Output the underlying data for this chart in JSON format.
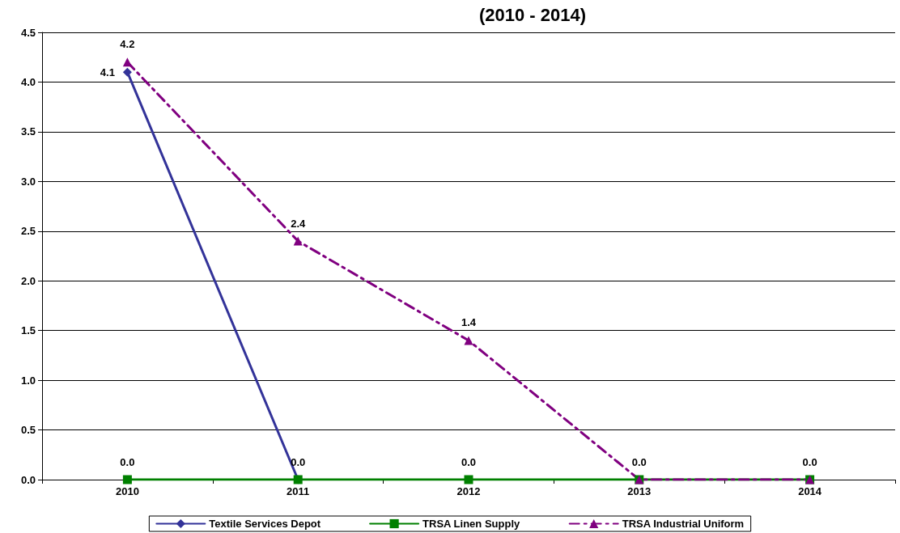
{
  "chart_data": {
    "type": "line",
    "title": "(2010 - 2014)",
    "categories": [
      "2010",
      "2011",
      "2012",
      "2013",
      "2014"
    ],
    "ylim": [
      0,
      4.5
    ],
    "yticks": [
      {
        "value": 0,
        "label": "0.0"
      },
      {
        "value": 0.5,
        "label": "0.5"
      },
      {
        "value": 1,
        "label": "1.0"
      },
      {
        "value": 1.5,
        "label": "1.5"
      },
      {
        "value": 2,
        "label": "2.0"
      },
      {
        "value": 2.5,
        "label": "2.5"
      },
      {
        "value": 3,
        "label": "3.0"
      },
      {
        "value": 3.5,
        "label": "3.5"
      },
      {
        "value": 4,
        "label": "4.0"
      },
      {
        "value": 4.5,
        "label": "4.5"
      }
    ],
    "grid": "y",
    "legend": "bottom",
    "series": [
      {
        "name": "Textile Services Depot",
        "color": "#333399",
        "marker": "diamond",
        "line_style": "solid",
        "values": [
          4.1,
          0,
          null,
          null,
          null
        ],
        "value_labels": [
          "4.1",
          null,
          null,
          null,
          null
        ]
      },
      {
        "name": "TRSA Linen Supply",
        "color": "#008000",
        "marker": "square",
        "line_style": "solid",
        "values": [
          0,
          0,
          0,
          0,
          0
        ],
        "value_labels": [
          "0.0",
          "0.0",
          "0.0",
          "0.0",
          "0.0"
        ]
      },
      {
        "name": "TRSA Industrial Uniform",
        "color": "#800080",
        "marker": "triangle",
        "line_style": "dashed",
        "values": [
          4.2,
          2.4,
          1.4,
          0,
          0
        ],
        "value_labels": [
          "4.2",
          "2.4",
          "1.4",
          null,
          null
        ]
      }
    ]
  }
}
